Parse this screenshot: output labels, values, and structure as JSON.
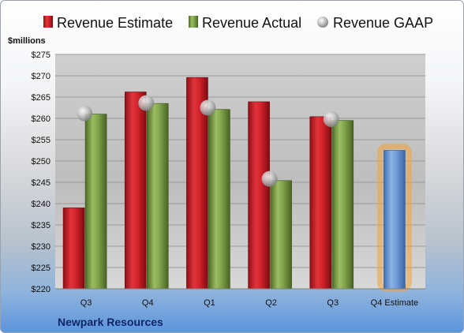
{
  "chart_data": {
    "type": "bar",
    "title": "",
    "ylabel": "$millions",
    "footer": "Newpark Resources",
    "ylim": [
      220,
      275
    ],
    "y_ticks": [
      220,
      225,
      230,
      235,
      240,
      245,
      250,
      255,
      260,
      265,
      270,
      275
    ],
    "y_tick_labels": [
      "$220",
      "$225",
      "$230",
      "$235",
      "$240",
      "$245",
      "$250",
      "$255",
      "$260",
      "$265",
      "$270",
      "$275"
    ],
    "categories": [
      "Q3",
      "Q4",
      "Q1",
      "Q2",
      "Q3",
      "Q4 Estimate"
    ],
    "series": [
      {
        "name": "Revenue Estimate",
        "kind": "bar",
        "color": "#d2222a",
        "values": [
          239,
          266.2,
          269.6,
          263.9,
          260.4,
          null
        ]
      },
      {
        "name": "Revenue Actual",
        "kind": "bar",
        "color": "#7fa24a",
        "values": [
          261,
          263.5,
          262.1,
          245.4,
          259.5,
          null
        ]
      },
      {
        "name": "Revenue GAAP",
        "kind": "marker",
        "color": "#b0b0b0",
        "values": [
          261.2,
          263.6,
          262.5,
          245.8,
          259.8,
          null
        ]
      },
      {
        "name": "",
        "kind": "bar",
        "color": "#6f9bd6",
        "highlight": "#f4a437",
        "values": [
          null,
          null,
          null,
          null,
          null,
          252.5
        ]
      }
    ],
    "legend_position": "top",
    "grid": true
  }
}
